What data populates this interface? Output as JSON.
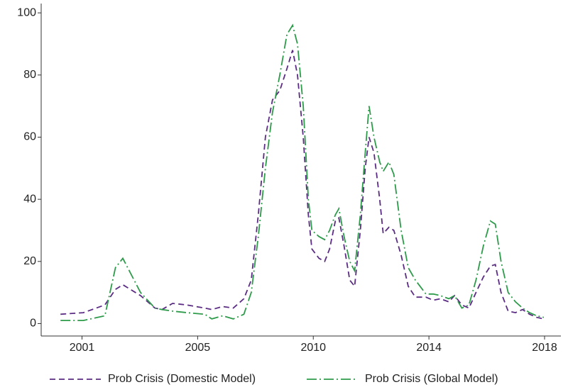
{
  "chart_data": {
    "type": "line",
    "x": [
      2000.21,
      2001.05,
      2001.84,
      2002.23,
      2002.5,
      2003.15,
      2003.68,
      2003.94,
      2004.33,
      2004.86,
      2005.51,
      2005.77,
      2006.17,
      2006.56,
      2006.95,
      2007.22,
      2007.48,
      2007.74,
      2008.0,
      2008.27,
      2008.53,
      2008.74,
      2008.92,
      2009.13,
      2009.32,
      2009.45,
      2009.71,
      2009.92,
      2010.1,
      2010.31,
      2010.44,
      2010.63,
      2010.84,
      2011.02,
      2011.23,
      2011.41,
      2011.55,
      2011.73,
      2011.94,
      2012.07,
      2012.28,
      2012.46,
      2012.73,
      2012.99,
      2013.25,
      2013.64,
      2013.91,
      2014.17,
      2014.48,
      2014.69,
      2014.96,
      2015.22,
      2015.48,
      2015.75,
      2016.01,
      2016.19,
      2016.4,
      2016.66,
      2016.93,
      2017.19,
      2017.45,
      2017.71,
      2017.97
    ],
    "series": [
      {
        "name": "Prob Crisis (Domestic Model)",
        "color": "#5b2c83",
        "dash": "8,5",
        "values": [
          3,
          3.5,
          6,
          11,
          12.5,
          9,
          5,
          4.5,
          6.5,
          6,
          5,
          4.5,
          5.5,
          5,
          8,
          14,
          35,
          60,
          72,
          75,
          82,
          88,
          80,
          60,
          35,
          24,
          21,
          20,
          24,
          33,
          34,
          25,
          14,
          12,
          30,
          50,
          60,
          55,
          40,
          29,
          31,
          30,
          22,
          12,
          8.5,
          8.5,
          7.5,
          8,
          7,
          9,
          6,
          5,
          10,
          15,
          18.5,
          19,
          10,
          4,
          3.5,
          4.5,
          3,
          2,
          1.5
        ]
      },
      {
        "name": "Prob Crisis (Global Model)",
        "color": "#2e9b4b",
        "dash": "14,4,2,4",
        "values": [
          1,
          1,
          2.5,
          18,
          21,
          10,
          5,
          4.5,
          4,
          3.5,
          3,
          1.5,
          2.5,
          1.5,
          3,
          10,
          28,
          50,
          68,
          80,
          93,
          96,
          90,
          70,
          40,
          30,
          28,
          27,
          30,
          35,
          37,
          28,
          20,
          17,
          35,
          55,
          70,
          60,
          52,
          49,
          52,
          48,
          30,
          18,
          14,
          9.5,
          9.5,
          9,
          8,
          9,
          5,
          6,
          14,
          25,
          33,
          32,
          20,
          10,
          7,
          5,
          3.5,
          2.5,
          2
        ]
      }
    ],
    "xlim": [
      1999.5,
      2018.6
    ],
    "xticks": [
      {
        "value": 2001,
        "label": "2001"
      },
      {
        "value": 2005.25,
        "label": "2005"
      },
      {
        "value": 2009.5,
        "label": "2010"
      },
      {
        "value": 2013.75,
        "label": "2014"
      },
      {
        "value": 2018,
        "label": "2018"
      }
    ],
    "ylim": [
      -4,
      103
    ],
    "yticks": [
      0,
      20,
      40,
      60,
      80,
      100
    ],
    "legend": "bottom"
  }
}
